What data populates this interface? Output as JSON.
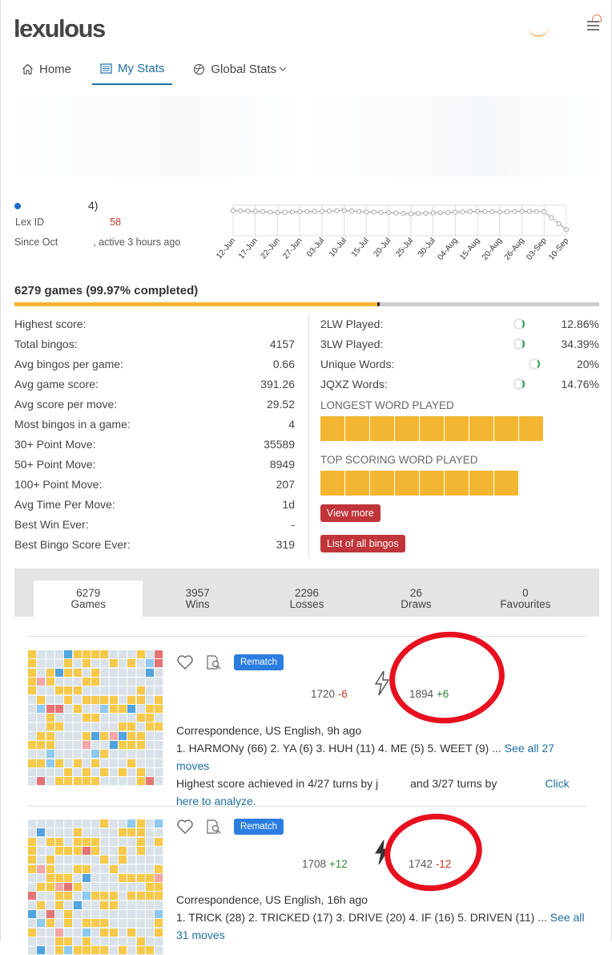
{
  "app": {
    "logo": "lexulous"
  },
  "nav": {
    "home": "Home",
    "my_stats": "My Stats",
    "global_stats": "Global Stats"
  },
  "profile": {
    "name_suffix": "4)",
    "lex_id_label": "Lex ID",
    "lex_id_value": "58",
    "since_start": "Since Oct",
    "since_end": ", active 3 hours ago"
  },
  "chart_data": {
    "type": "line",
    "categories": [
      "12-Jun",
      "17-Jun",
      "22-Jun",
      "27-Jun",
      "03-Jul",
      "10-Jul",
      "15-Jul",
      "20-Jul",
      "25-Jul",
      "30-Jul",
      "04-Aug",
      "15-Aug",
      "20-Aug",
      "26-Aug",
      "03-Sep",
      "10-Sep"
    ],
    "series": [
      {
        "values": [
          0.82,
          0.8,
          0.76,
          0.79,
          0.8,
          0.83,
          0.78,
          0.76,
          0.72,
          0.75,
          0.77,
          0.8,
          0.78,
          0.8,
          0.79,
          0.2
        ]
      }
    ],
    "grid": true
  },
  "summary": {
    "text": "6279 games (99.97% completed)",
    "percent": 62
  },
  "stats_left": [
    {
      "label": "Highest score:",
      "value": ""
    },
    {
      "label": "Total bingos:",
      "value": "4157"
    },
    {
      "label": "Avg bingos per game:",
      "value": "0.66"
    },
    {
      "label": "Avg game score:",
      "value": "391.26"
    },
    {
      "label": "Avg score per move:",
      "value": "29.52"
    },
    {
      "label": "Most bingos in a game:",
      "value": "4"
    },
    {
      "label": "30+ Point Move:",
      "value": "35589"
    },
    {
      "label": "50+ Point Move:",
      "value": "8949"
    },
    {
      "label": "100+ Point Move:",
      "value": "207"
    },
    {
      "label": "Avg Time Per Move:",
      "value": "1d"
    },
    {
      "label": "Best Win Ever:",
      "value": "-"
    },
    {
      "label": "Best Bingo Score Ever:",
      "value": "319"
    }
  ],
  "stats_right": [
    {
      "label": "2LW Played:",
      "value": "12.86%"
    },
    {
      "label": "3LW Played:",
      "value": "34.39%"
    },
    {
      "label": "Unique Words:",
      "value": "20%"
    },
    {
      "label": "JQXZ Words:",
      "value": "14.76%"
    }
  ],
  "longest_word_label": "LONGEST WORD PLAYED",
  "top_scoring_label": "TOP SCORING WORD PLAYED",
  "buttons": {
    "view_more": "View more",
    "list_bingos": "List of all bingos",
    "rematch": "Rematch"
  },
  "tabs": [
    {
      "count": "6279",
      "label": "Games"
    },
    {
      "count": "3957",
      "label": "Wins"
    },
    {
      "count": "2296",
      "label": "Losses"
    },
    {
      "count": "26",
      "label": "Draws"
    },
    {
      "count": "0",
      "label": "Favourites"
    }
  ],
  "games": [
    {
      "score_a": "1720",
      "delta_a": "-6",
      "score_b": "1894",
      "delta_b": "+6",
      "info": "Correspondence, US English, 9h ago",
      "moves": "1. HARMONy (66) 2. YA (6) 3. HUH (11) 4. ME (5) 5. WEET (9) ...",
      "moves_link": "See all 27 moves",
      "highest_a": "Highest score achieved in 4/27 turns by j",
      "highest_b": "and 3/27 turns by",
      "highest_link": "Click here to analyze."
    },
    {
      "score_a": "1708",
      "delta_a": "+12",
      "score_b": "1742",
      "delta_b": "-12",
      "info": "Correspondence, US English, 16h ago",
      "moves": "1. TRICK (28) 2. TRICKED (17) 3. DRIVE (20) 4. IF (16) 5. DRIVEN (11) ...",
      "moves_link": "See all 31 moves"
    }
  ]
}
